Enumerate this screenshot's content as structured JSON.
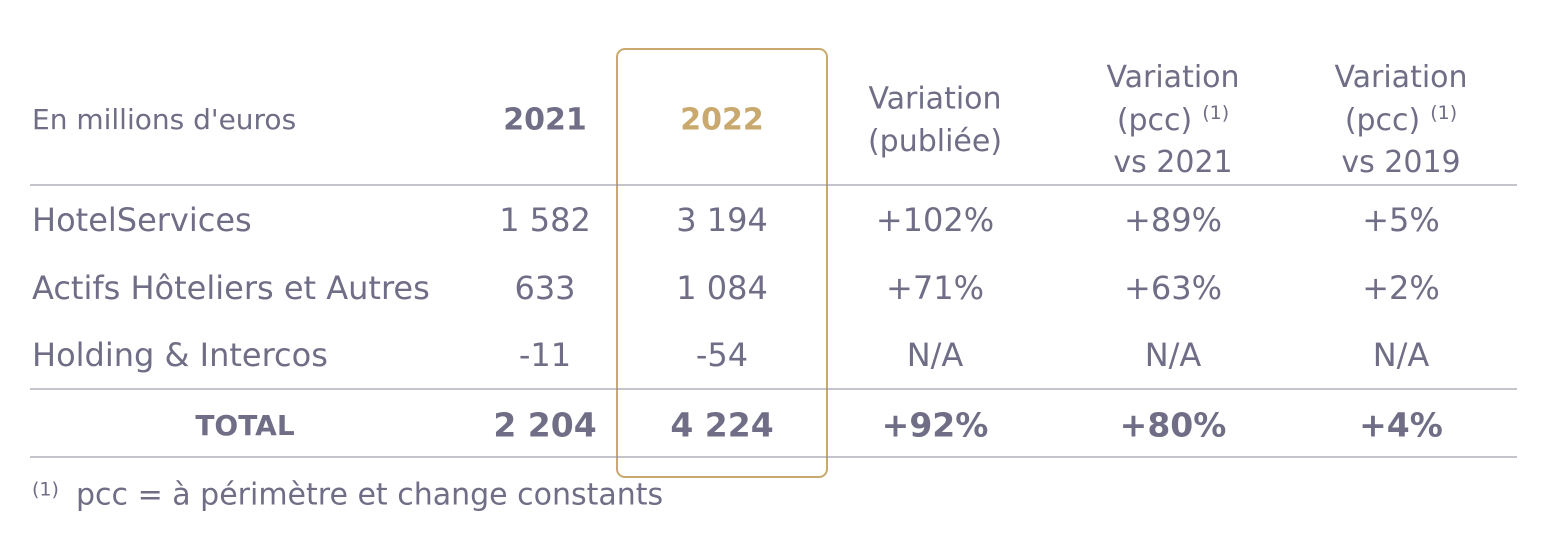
{
  "header": {
    "columns": [
      {
        "lines": [
          "En millions d'euros"
        ]
      },
      {
        "lines": [
          "2021"
        ]
      },
      {
        "lines": [
          "2022"
        ]
      },
      {
        "lines": [
          "Variation",
          "(publiée)"
        ]
      },
      {
        "lines": [
          "Variation",
          "(pcc)",
          "vs 2021"
        ],
        "note": "(1)"
      },
      {
        "lines": [
          "Variation",
          "(pcc)",
          "vs 2019"
        ],
        "note": "(1)"
      }
    ]
  },
  "table": {
    "rows": [
      [
        "HotelServices",
        "1 582",
        "3 194",
        "+102%",
        "+89%",
        "+5%"
      ],
      [
        "Actifs Hôteliers et Autres",
        "633",
        "1 084",
        "+71%",
        "+63%",
        "+2%"
      ],
      [
        "Holding & Intercos",
        "-11",
        "-54",
        "N/A",
        "N/A",
        "N/A"
      ]
    ],
    "total": [
      "TOTAL",
      "2 204",
      "4 224",
      "+92%",
      "+80%",
      "+4%"
    ]
  },
  "footnote": {
    "note": "(1)",
    "text": "pcc = à périmètre et change constants"
  }
}
